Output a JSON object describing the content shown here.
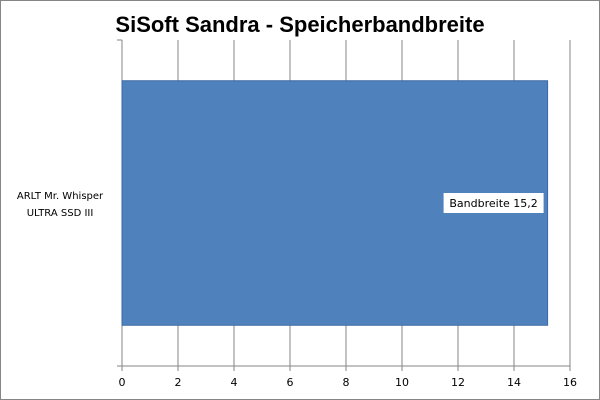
{
  "chart_data": {
    "type": "bar",
    "orientation": "horizontal",
    "title": "SiSoft Sandra - Speicherbandbreite",
    "categories": [
      [
        "ARLT Mr. Whisper",
        "ULTRA SSD III"
      ]
    ],
    "series": [
      {
        "name": "Bandbreite",
        "values": [
          15.2
        ],
        "color": "#4F81BD"
      }
    ],
    "data_labels": [
      "Bandbreite 15,2"
    ],
    "xlim": [
      0,
      16
    ],
    "xticks": [
      "0",
      "2",
      "4",
      "6",
      "8",
      "10",
      "12",
      "14",
      "16"
    ],
    "grid": true,
    "legend": "none"
  }
}
